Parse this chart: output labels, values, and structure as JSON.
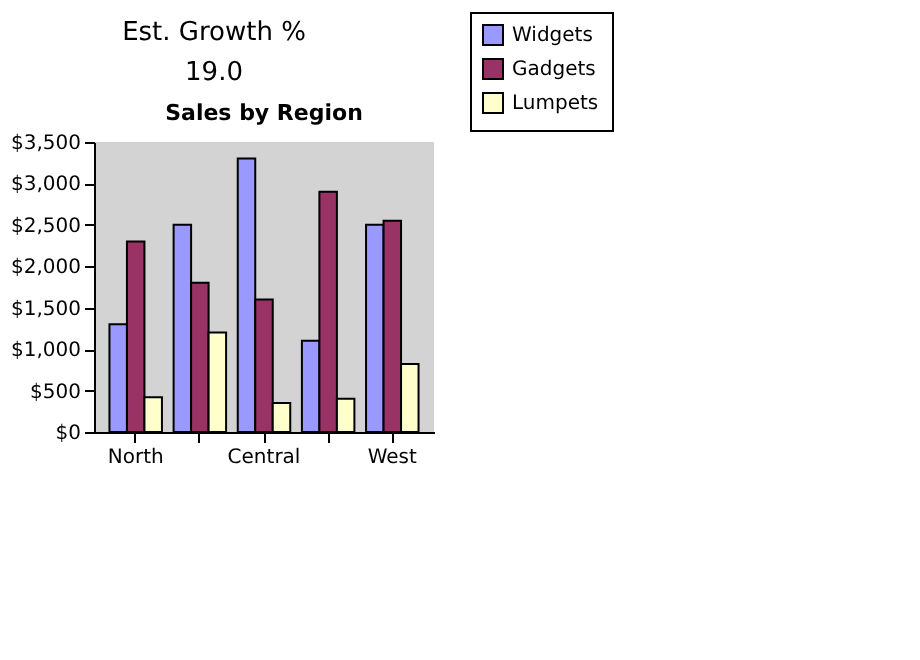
{
  "chart_data": {
    "type": "bar",
    "title": "Sales by Region",
    "categories": [
      "North",
      null,
      "Central",
      null,
      "West"
    ],
    "series": [
      {
        "name": "Widgets",
        "color": "#9999ff",
        "values": [
          1300,
          2500,
          3300,
          1100,
          2500
        ]
      },
      {
        "name": "Gadgets",
        "color": "#993366",
        "values": [
          2300,
          1800,
          1600,
          2900,
          2550
        ]
      },
      {
        "name": "Lumpets",
        "color": "#ffffcc",
        "values": [
          420,
          1200,
          350,
          400,
          820
        ]
      }
    ],
    "ylim": [
      0,
      3500
    ],
    "yticks": [
      {
        "value": 0,
        "label": "$0"
      },
      {
        "value": 500,
        "label": "$500"
      },
      {
        "value": 1000,
        "label": "$1,000"
      },
      {
        "value": 1500,
        "label": "$1,500"
      },
      {
        "value": 2000,
        "label": "$2,000"
      },
      {
        "value": 2500,
        "label": "$2,500"
      },
      {
        "value": 3000,
        "label": "$3,000"
      },
      {
        "value": 3500,
        "label": "$3,500"
      }
    ],
    "grid": false,
    "legend": "right",
    "annotations": [
      "Est. Growth %",
      "19.0"
    ]
  }
}
